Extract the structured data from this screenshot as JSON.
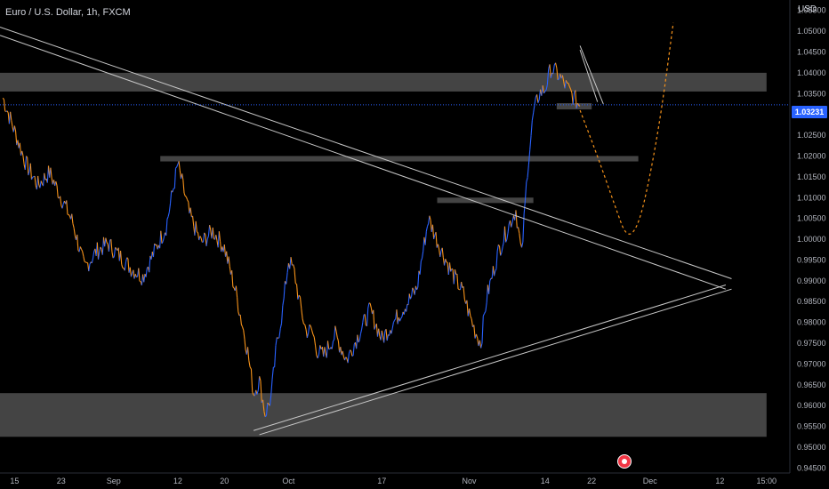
{
  "header": {
    "symbol": "Euro / U.S. Dollar",
    "interval": "1h",
    "exchange": "FXCM"
  },
  "price_axis": {
    "currency": "USD",
    "last_price": "1.03231"
  },
  "colors": {
    "background": "#000000",
    "candle_up": "#2962ff",
    "candle_down": "#f7931a",
    "zone": "#505050",
    "trendline": "#c8c8c8",
    "projection": "#f7931a",
    "last_price": "#2962ff"
  },
  "chart_data": {
    "type": "line",
    "ylim": [
      0.9438,
      1.0575
    ],
    "y_ticks": [
      "1.05500",
      "1.05000",
      "1.04500",
      "1.04000",
      "1.03500",
      "1.03000",
      "1.02500",
      "1.02000",
      "1.01500",
      "1.01000",
      "1.00500",
      "1.00000",
      "0.99500",
      "0.99000",
      "0.98500",
      "0.98000",
      "0.97500",
      "0.97000",
      "0.96500",
      "0.96000",
      "0.95500",
      "0.95000",
      "0.94500"
    ],
    "x_ticks": [
      "15",
      "23",
      "Sep",
      "12",
      "20",
      "Oct",
      "17",
      "Nov",
      "14",
      "22",
      "Dec",
      "12",
      "15:00"
    ],
    "x_tick_values": [
      15,
      23,
      32,
      43,
      51,
      62,
      78,
      93,
      106,
      114,
      124,
      136,
      144
    ],
    "xlim": [
      12.5,
      148
    ],
    "price_path": [
      [
        13,
        1.034
      ],
      [
        15,
        1.026
      ],
      [
        17,
        1.018
      ],
      [
        19,
        1.013
      ],
      [
        21,
        1.016
      ],
      [
        23,
        1.01
      ],
      [
        25,
        1.004
      ],
      [
        27,
        0.993
      ],
      [
        29,
        0.997
      ],
      [
        31,
        0.999
      ],
      [
        33,
        0.996
      ],
      [
        35,
        0.993
      ],
      [
        37,
        0.991
      ],
      [
        39,
        0.997
      ],
      [
        41,
        1.003
      ],
      [
        43,
        1.018
      ],
      [
        45,
        1.006
      ],
      [
        47,
        0.999
      ],
      [
        49,
        1.002
      ],
      [
        51,
        0.998
      ],
      [
        53,
        0.987
      ],
      [
        55,
        0.973
      ],
      [
        56,
        0.963
      ],
      [
        57,
        0.966
      ],
      [
        58,
        0.958
      ],
      [
        59,
        0.962
      ],
      [
        60,
        0.975
      ],
      [
        61,
        0.983
      ],
      [
        62,
        0.995
      ],
      [
        63,
        0.992
      ],
      [
        64,
        0.984
      ],
      [
        65,
        0.978
      ],
      [
        66,
        0.978
      ],
      [
        67,
        0.973
      ],
      [
        68,
        0.972
      ],
      [
        70,
        0.977
      ],
      [
        72,
        0.971
      ],
      [
        74,
        0.977
      ],
      [
        76,
        0.983
      ],
      [
        78,
        0.976
      ],
      [
        80,
        0.98
      ],
      [
        82,
        0.984
      ],
      [
        84,
        0.988
      ],
      [
        86,
        1.005
      ],
      [
        88,
        0.998
      ],
      [
        90,
        0.992
      ],
      [
        92,
        0.987
      ],
      [
        93,
        0.982
      ],
      [
        94,
        0.978
      ],
      [
        95,
        0.975
      ],
      [
        96,
        0.986
      ],
      [
        98,
        0.997
      ],
      [
        100,
        1.004
      ],
      [
        101,
        1.007
      ],
      [
        102,
        0.996
      ],
      [
        103,
        1.017
      ],
      [
        104,
        1.03
      ],
      [
        105,
        1.035
      ],
      [
        106,
        1.036
      ],
      [
        107,
        1.041
      ],
      [
        108,
        1.04
      ],
      [
        109,
        1.038
      ],
      [
        110,
        1.036
      ],
      [
        111,
        1.034
      ],
      [
        112,
        1.032
      ]
    ],
    "zones": [
      {
        "x": [
          12.5,
          144
        ],
        "y": [
          1.0355,
          1.04
        ]
      },
      {
        "x": [
          40,
          122
        ],
        "y": [
          1.0187,
          1.02
        ]
      },
      {
        "x": [
          87.5,
          104
        ],
        "y": [
          1.0087,
          1.01
        ]
      },
      {
        "x": [
          108,
          114
        ],
        "y": [
          1.0312,
          1.0327
        ]
      },
      {
        "x": [
          12.5,
          144
        ],
        "y": [
          0.9525,
          0.963
        ]
      }
    ],
    "trendlines": [
      {
        "from": [
          12.5,
          1.051
        ],
        "to": [
          138,
          0.9905
        ]
      },
      {
        "from": [
          12.5,
          1.049
        ],
        "to": [
          137,
          0.988
        ]
      },
      {
        "from": [
          56,
          0.954
        ],
        "to": [
          137,
          0.989
        ]
      },
      {
        "from": [
          57,
          0.953
        ],
        "to": [
          138,
          0.988
        ]
      },
      {
        "from": [
          112,
          1.0465
        ],
        "to": [
          116,
          1.0325
        ]
      },
      {
        "from": [
          112,
          1.0455
        ],
        "to": [
          115,
          1.033
        ]
      }
    ],
    "projection": [
      [
        112,
        1.031
      ],
      [
        115,
        1.02
      ],
      [
        118,
        1.008
      ],
      [
        120,
        1.0002
      ],
      [
        122,
        1.003
      ],
      [
        124,
        1.015
      ],
      [
        126,
        1.031
      ],
      [
        128,
        1.052
      ]
    ],
    "last_price": 1.03231
  }
}
